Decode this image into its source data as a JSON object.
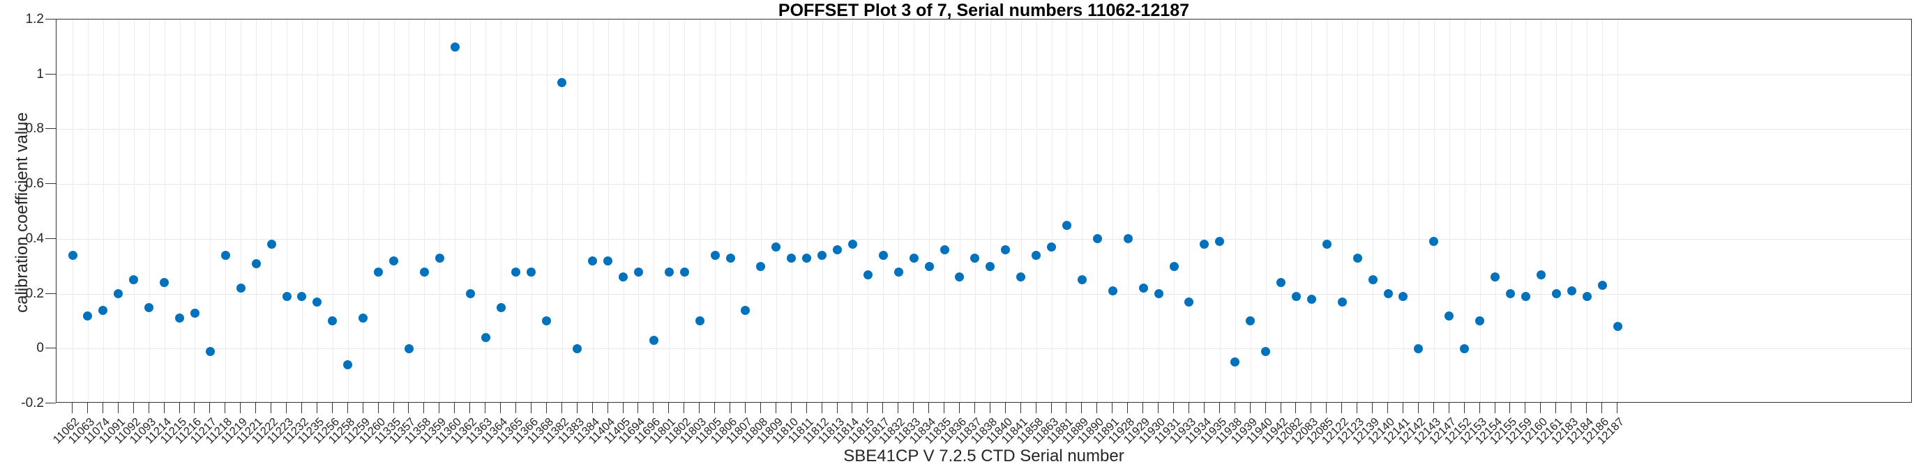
{
  "chart_data": {
    "type": "scatter",
    "title": "POFFSET Plot 3 of 7, Serial numbers 11062-12187",
    "xlabel": "SBE41CP V 7.2.5 CTD Serial number",
    "ylabel": "calibration coefficient value",
    "ylim": [
      -0.2,
      1.2
    ],
    "yticks": [
      -0.2,
      0,
      0.2,
      0.4,
      0.6,
      0.8,
      1,
      1.2
    ],
    "ytick_labels": [
      "-0.2",
      "0",
      "0.2",
      "0.4",
      "0.6",
      "0.8",
      "1",
      "1.2"
    ],
    "grid": true,
    "legend": "none",
    "marker_color": "#0072BD",
    "categories": [
      "11062",
      "11063",
      "11074",
      "11091",
      "11092",
      "11093",
      "11214",
      "11215",
      "11216",
      "11217",
      "11218",
      "11219",
      "11221",
      "11222",
      "11223",
      "11232",
      "11235",
      "11256",
      "11258",
      "11259",
      "11260",
      "11335",
      "11357",
      "11358",
      "11359",
      "11360",
      "11362",
      "11363",
      "11364",
      "11365",
      "11366",
      "11368",
      "11382",
      "11383",
      "11384",
      "11404",
      "11405",
      "11694",
      "11696",
      "11801",
      "11802",
      "11803",
      "11805",
      "11806",
      "11807",
      "11808",
      "11809",
      "11810",
      "11811",
      "11812",
      "11813",
      "11814",
      "11815",
      "11817",
      "11832",
      "11833",
      "11834",
      "11835",
      "11836",
      "11837",
      "11838",
      "11840",
      "11841",
      "11858",
      "11863",
      "11881",
      "11889",
      "11890",
      "11891",
      "11928",
      "11929",
      "11930",
      "11931",
      "11933",
      "11934",
      "11935",
      "11938",
      "11939",
      "11940",
      "11942",
      "12082",
      "12083",
      "12085",
      "12122",
      "12123",
      "12139",
      "12140",
      "12141",
      "12142",
      "12143",
      "12147",
      "12152",
      "12153",
      "12154",
      "12155",
      "12159",
      "12160",
      "12161",
      "12183",
      "12184",
      "12186",
      "12187"
    ],
    "values": [
      0.34,
      0.12,
      0.14,
      0.2,
      0.25,
      0.15,
      0.24,
      0.11,
      0.13,
      -0.01,
      0.34,
      0.22,
      0.31,
      0.38,
      0.19,
      0.19,
      0.17,
      0.1,
      -0.06,
      0.11,
      0.28,
      0.32,
      0.0,
      0.28,
      0.33,
      1.1,
      0.2,
      0.04,
      0.15,
      0.28,
      0.28,
      0.1,
      0.97,
      0.0,
      0.32,
      0.32,
      0.26,
      0.28,
      0.03,
      0.28,
      0.28,
      0.1,
      0.34,
      0.33,
      0.14,
      0.3,
      0.37,
      0.33,
      0.33,
      0.34,
      0.36,
      0.38,
      0.27,
      0.34,
      0.28,
      0.33,
      0.3,
      0.36,
      0.26,
      0.33,
      0.3,
      0.36,
      0.26,
      0.34,
      0.37,
      0.45,
      0.25,
      0.4,
      0.21,
      0.4,
      0.22,
      0.2,
      0.3,
      0.17,
      0.38,
      0.39,
      -0.05,
      0.1,
      -0.01,
      0.24,
      0.19,
      0.18,
      0.38,
      0.17,
      0.33,
      0.25,
      0.2,
      0.19,
      0.0,
      0.39,
      0.12,
      0.0,
      0.1,
      0.26,
      0.2,
      0.19,
      0.27,
      0.2,
      0.21,
      0.19,
      0.23,
      0.08
    ]
  }
}
